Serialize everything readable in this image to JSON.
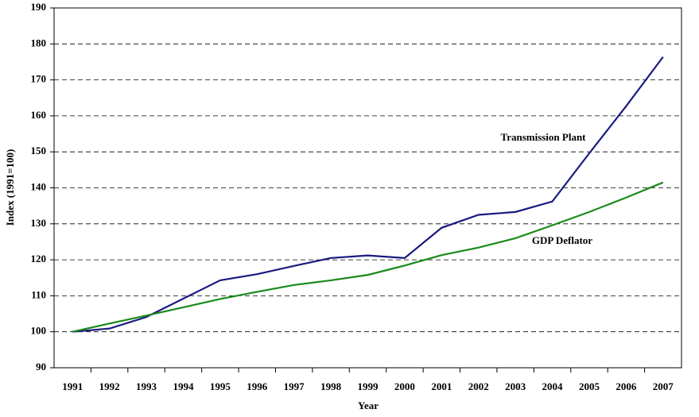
{
  "chart_data": {
    "type": "line",
    "x_label": "Year",
    "y_label": "Index (1991=100)",
    "categories": [
      "1991",
      "1992",
      "1993",
      "1994",
      "1995",
      "1996",
      "1997",
      "1998",
      "1999",
      "2000",
      "2001",
      "2002",
      "2003",
      "2004",
      "2005",
      "2006",
      "2007"
    ],
    "series": [
      {
        "name": "Transmission Plant",
        "color": "#1a1a80",
        "values": [
          100,
          100.9,
          104.1,
          109.2,
          114.3,
          116,
          118.3,
          120.5,
          121.2,
          120.5,
          128.9,
          132.5,
          133.3,
          136.2,
          149.6,
          162.7,
          176.4
        ]
      },
      {
        "name": "GDP Deflator",
        "color": "#1a8a1a",
        "values": [
          100,
          102.3,
          104.5,
          106.8,
          109.1,
          111.1,
          113,
          114.3,
          115.8,
          118.4,
          121.3,
          123.4,
          126,
          129.6,
          133.3,
          137.3,
          141.5
        ]
      }
    ],
    "ylim": [
      90,
      190
    ],
    "yticks": [
      90,
      100,
      110,
      120,
      130,
      140,
      150,
      160,
      170,
      180,
      190
    ],
    "grid": true
  }
}
